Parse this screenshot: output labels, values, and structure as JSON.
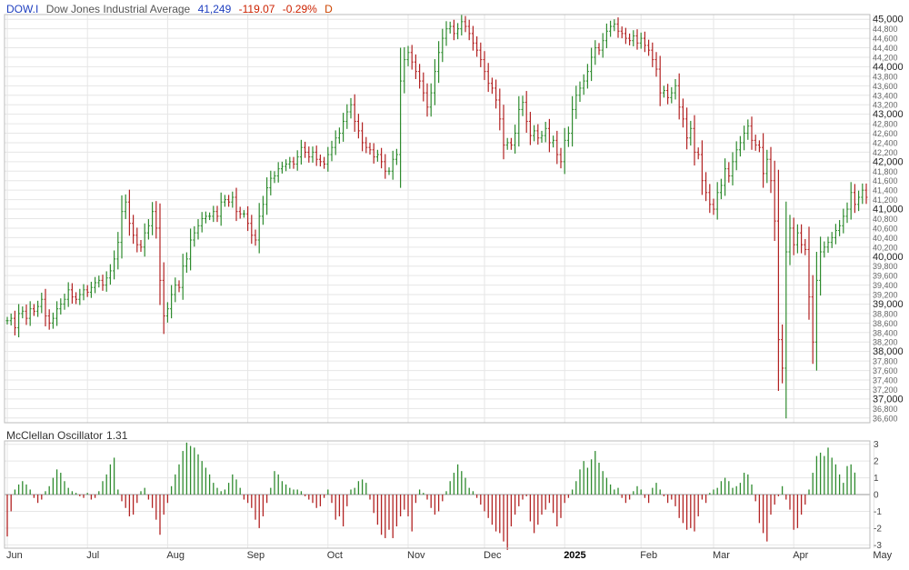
{
  "header": {
    "symbol": "DOW.I",
    "name": "Dow Jones Industrial Average",
    "last": "41,249",
    "change": "-119.07",
    "change_pct": "-0.29%",
    "frequency": "D"
  },
  "oscillator": {
    "name": "McClellan Oscillator",
    "value": "1.31"
  },
  "colors": {
    "up": "#2e8b2e",
    "down": "#b22222",
    "grid": "#e6e6e6",
    "border": "#bbbbbb"
  },
  "chart_data": [
    {
      "type": "ohlc",
      "title": "Dow Jones Industrial Average",
      "y_scale": "linear",
      "ylim": [
        36500,
        45100
      ],
      "y_ticks": [
        36600,
        36800,
        37000,
        37200,
        37400,
        37600,
        37800,
        38000,
        38200,
        38400,
        38600,
        38800,
        39000,
        39200,
        39400,
        39600,
        39800,
        40000,
        40200,
        40400,
        40600,
        40800,
        41000,
        41200,
        41400,
        41600,
        41800,
        42000,
        42200,
        42400,
        42600,
        42800,
        43000,
        43200,
        43400,
        43600,
        43800,
        44000,
        44200,
        44400,
        44600,
        44800,
        45000
      ],
      "y_tick_labels": [
        "36,600",
        "36,800",
        "37,000",
        "37,200",
        "37,400",
        "37,600",
        "37,800",
        "38,000",
        "38,200",
        "38,400",
        "38,600",
        "38,800",
        "39,000",
        "39,200",
        "39,400",
        "39,600",
        "39,800",
        "40,000",
        "40,200",
        "40,400",
        "40,600",
        "40,800",
        "41,000",
        "41,200",
        "41,400",
        "41,600",
        "41,800",
        "42,000",
        "42,200",
        "42,400",
        "42,600",
        "42,800",
        "43,000",
        "43,200",
        "43,400",
        "43,600",
        "43,800",
        "44,000",
        "44,200",
        "44,400",
        "44,600",
        "44,800",
        "45,000"
      ],
      "y_major_ticks": [
        37000,
        38000,
        39000,
        40000,
        41000,
        42000,
        43000,
        44000,
        45000
      ],
      "x_labels": [
        "Jun",
        "Jul",
        "Aug",
        "Sep",
        "Oct",
        "Nov",
        "Dec",
        "2025",
        "Feb",
        "Mar",
        "Apr",
        "May"
      ],
      "x_label_index": [
        0,
        21,
        42,
        63,
        84,
        105,
        125,
        146,
        166,
        185,
        206,
        227
      ],
      "grid": true,
      "close": [
        38650,
        38700,
        38500,
        38800,
        38850,
        38700,
        38900,
        38850,
        38950,
        39100,
        38750,
        38600,
        38700,
        38900,
        39000,
        39100,
        39300,
        39150,
        39100,
        39200,
        39300,
        39250,
        39350,
        39450,
        39500,
        39400,
        39550,
        39700,
        39950,
        40300,
        40950,
        41150,
        40700,
        40450,
        40250,
        40200,
        40500,
        40650,
        40950,
        40600,
        39500,
        38750,
        38900,
        39200,
        39400,
        39350,
        39800,
        39950,
        40350,
        40500,
        40650,
        40800,
        40850,
        40850,
        40950,
        40850,
        41150,
        41200,
        41150,
        41250,
        40950,
        40900,
        40900,
        40700,
        40450,
        40350,
        40850,
        41100,
        41450,
        41650,
        41700,
        41850,
        41900,
        41950,
        42000,
        41950,
        42100,
        42300,
        42200,
        42100,
        42200,
        42050,
        42000,
        41950,
        42150,
        42300,
        42500,
        42600,
        42850,
        43050,
        43200,
        42850,
        42650,
        42400,
        42300,
        42250,
        42100,
        42150,
        42000,
        41800,
        41800,
        42050,
        42150,
        43700,
        44150,
        44300,
        44100,
        43900,
        43700,
        43450,
        43150,
        43450,
        43900,
        44300,
        44600,
        44800,
        44850,
        44700,
        44800,
        44950,
        44850,
        44700,
        44500,
        44350,
        44150,
        43900,
        43650,
        43550,
        43300,
        42900,
        42350,
        42400,
        42350,
        42600,
        43100,
        43250,
        42850,
        42550,
        42650,
        42500,
        42550,
        42700,
        42400,
        42450,
        42150,
        42000,
        42450,
        42600,
        43100,
        43400,
        43550,
        43700,
        43900,
        44200,
        44400,
        44350,
        44550,
        44750,
        44850,
        44900,
        44750,
        44700,
        44600,
        44550,
        44650,
        44500,
        44600,
        44450,
        44350,
        44150,
        43950,
        43450,
        43500,
        43350,
        43450,
        43600,
        43150,
        42900,
        42500,
        42700,
        42200,
        42150,
        41600,
        41350,
        41100,
        41000,
        41350,
        41500,
        41850,
        41700,
        42000,
        42250,
        42400,
        42600,
        42750,
        42450,
        42350,
        42300,
        41750,
        42050,
        41600,
        40750,
        38250,
        37650,
        40100,
        40600,
        40250,
        40500,
        40250,
        40150,
        39150,
        38200,
        39500,
        40100,
        40200,
        40300,
        40400,
        40550,
        40650,
        40850,
        41000,
        41350,
        41100,
        41250,
        41400,
        41250
      ],
      "indicator": {
        "name": "McClellan Oscillator",
        "ylim": [
          -3.2,
          3.2
        ],
        "y_ticks": [
          -3,
          -2,
          -1,
          0,
          1,
          2,
          3
        ],
        "values": [
          -2.5,
          -1,
          0.3,
          0.6,
          0.8,
          0.6,
          0.3,
          -0.2,
          -0.5,
          -0.3,
          0.2,
          0.5,
          1,
          1.5,
          1.3,
          0.8,
          0.4,
          0.2,
          0.1,
          -0.1,
          -0.2,
          0.1,
          -0.3,
          -0.2,
          0.2,
          0.8,
          1.2,
          1.8,
          2.2,
          0.3,
          -0.4,
          -0.8,
          -1.3,
          -1.2,
          -0.5,
          0.2,
          0.4,
          -0.3,
          -0.8,
          -1.5,
          -2.4,
          -1.2,
          -0.5,
          0.5,
          1.2,
          1.8,
          2.6,
          3.1,
          2.9,
          2.8,
          2.4,
          2,
          1.6,
          1.2,
          0.7,
          0.4,
          0.2,
          0.3,
          0.7,
          1.2,
          0.9,
          0.4,
          -0.3,
          -0.5,
          -0.8,
          -1.5,
          -2,
          -1.3,
          -0.5,
          0.4,
          1.4,
          1.2,
          0.8,
          0.6,
          0.4,
          0.3,
          0.3,
          0.2,
          -0.1,
          -0.3,
          -0.5,
          -0.8,
          -0.7,
          -0.2,
          0.3,
          -0.5,
          -1.5,
          -1.3,
          -1.9,
          -0.7,
          0.3,
          0.4,
          0.8,
          0.9,
          0.7,
          -0.3,
          -1.1,
          -1.8,
          -2.4,
          -2.6,
          -2.1,
          -2.6,
          -1.9,
          -1.3,
          -0.9,
          -1.3,
          -2.2,
          -0.5,
          0.3,
          0.1,
          -0.3,
          -0.8,
          -1.2,
          -1,
          -0.4,
          0.2,
          0.8,
          1.3,
          1.8,
          1.4,
          1,
          0.4,
          0.2,
          -0.2,
          -0.6,
          -1,
          -1.4,
          -1.8,
          -2.2,
          -2.3,
          -2.8,
          -3.3,
          -1.9,
          -1.2,
          -0.7,
          -0.3,
          -0.1,
          -1.6,
          -2.3,
          -1.8,
          -1.2,
          -0.9,
          -0.5,
          -1.1,
          -1.9,
          -1.4,
          -0.5,
          -0.2,
          0.3,
          0.8,
          1.5,
          2,
          1.6,
          2.1,
          2.6,
          1.9,
          1.4,
          1,
          0.6,
          0.3,
          0.4,
          -0.2,
          -0.5,
          -0.3,
          0.2,
          0.5,
          0.3,
          -0.2,
          -0.5,
          0.4,
          0.7,
          0.3,
          -0.1,
          -0.5,
          -0.3,
          -0.7,
          -1.4,
          -1.7,
          -2.1,
          -2,
          -2.2,
          -1.3,
          -0.3,
          -0.5,
          0.1,
          0.3,
          0.4,
          0.8,
          1,
          0.8,
          0.4,
          0.5,
          0.7,
          1.3,
          1.2,
          0.6,
          -0.4,
          -1.7,
          -2.3,
          -2.8,
          -1.2,
          -0.6,
          -0.1,
          0.5,
          -0.3,
          -0.9,
          -2.1,
          -2,
          -1.2,
          -0.6,
          0.3,
          1.3,
          2.3,
          2.5,
          2.3,
          2.8,
          2.2,
          1.8,
          1.2,
          0.7,
          1.7,
          1.8,
          1.31
        ]
      }
    }
  ]
}
